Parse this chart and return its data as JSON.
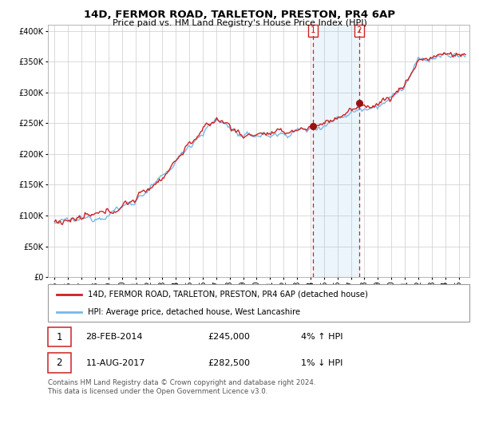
{
  "title1": "14D, FERMOR ROAD, TARLETON, PRESTON, PR4 6AP",
  "title2": "Price paid vs. HM Land Registry's House Price Index (HPI)",
  "legend_line1": "14D, FERMOR ROAD, TARLETON, PRESTON, PR4 6AP (detached house)",
  "legend_line2": "HPI: Average price, detached house, West Lancashire",
  "annotation1_label": "1",
  "annotation1_date": "28-FEB-2014",
  "annotation1_price": "£245,000",
  "annotation1_hpi": "4% ↑ HPI",
  "annotation2_label": "2",
  "annotation2_date": "11-AUG-2017",
  "annotation2_price": "£282,500",
  "annotation2_hpi": "1% ↓ HPI",
  "footer": "Contains HM Land Registry data © Crown copyright and database right 2024.\nThis data is licensed under the Open Government Licence v3.0.",
  "sale1_year": 2014.17,
  "sale1_value": 245000,
  "sale2_year": 2017.62,
  "sale2_value": 282500,
  "hpi_color": "#7ab8e8",
  "price_color": "#cc2222",
  "background_color": "#ffffff",
  "grid_color": "#cccccc",
  "ylim_min": 0,
  "ylim_max": 410000,
  "xlim_min": 1994.5,
  "xlim_max": 2025.8
}
